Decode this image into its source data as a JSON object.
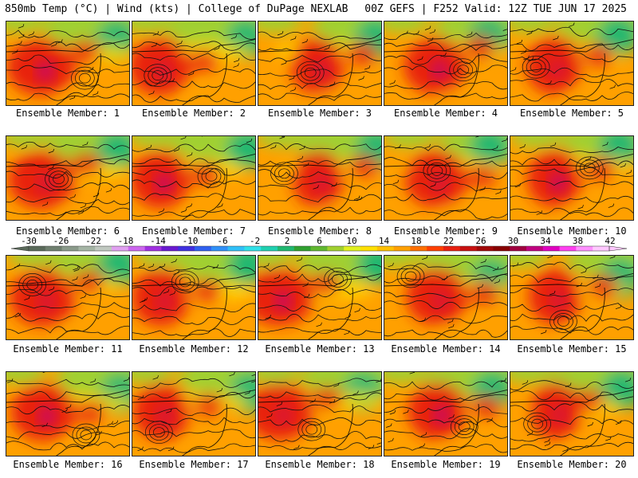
{
  "header": {
    "left": "850mb Temp (°C) | Wind (kts) | College of DuPage NEXLAB",
    "right": "00Z GEFS | F252 Valid: 12Z TUE JUN 17 2025"
  },
  "member_label_prefix": "Ensemble Member: ",
  "members": [
    {
      "number": "1"
    },
    {
      "number": "2"
    },
    {
      "number": "3"
    },
    {
      "number": "4"
    },
    {
      "number": "5"
    },
    {
      "number": "6"
    },
    {
      "number": "7"
    },
    {
      "number": "8"
    },
    {
      "number": "9"
    },
    {
      "number": "10"
    },
    {
      "number": "11"
    },
    {
      "number": "12"
    },
    {
      "number": "13"
    },
    {
      "number": "14"
    },
    {
      "number": "15"
    },
    {
      "number": "16"
    },
    {
      "number": "17"
    },
    {
      "number": "18"
    },
    {
      "number": "19"
    },
    {
      "number": "20"
    }
  ],
  "colorbar": {
    "tick_labels": [
      "-30",
      "-26",
      "-22",
      "-18",
      "-14",
      "-10",
      "-6",
      "-2",
      "2",
      "6",
      "10",
      "14",
      "18",
      "22",
      "26",
      "30",
      "34",
      "38",
      "42"
    ],
    "colors": [
      "#5a6a5a",
      "#6f7f6f",
      "#8a9a8a",
      "#a5b5a5",
      "#c0c8c0",
      "#e0a0f0",
      "#cc66ee",
      "#a030e0",
      "#6a1ad0",
      "#4030e0",
      "#3060f0",
      "#3090f8",
      "#30c0f8",
      "#30e0e8",
      "#20d0b0",
      "#20b870",
      "#30a030",
      "#60b830",
      "#a0d030",
      "#e0f020",
      "#ffe000",
      "#ffc000",
      "#ffa000",
      "#ff7000",
      "#ff4000",
      "#e82010",
      "#c81010",
      "#a00808",
      "#880000",
      "#a00040",
      "#c00080",
      "#e000c0",
      "#ff40f0",
      "#ff90ff",
      "#ffc8ff"
    ]
  },
  "map_colors": {
    "cold": "#20b870",
    "cool": "#a0d030",
    "mild": "#ffe000",
    "warm": "#ffa000",
    "hot": "#e82010",
    "hottest": "#c00080"
  }
}
